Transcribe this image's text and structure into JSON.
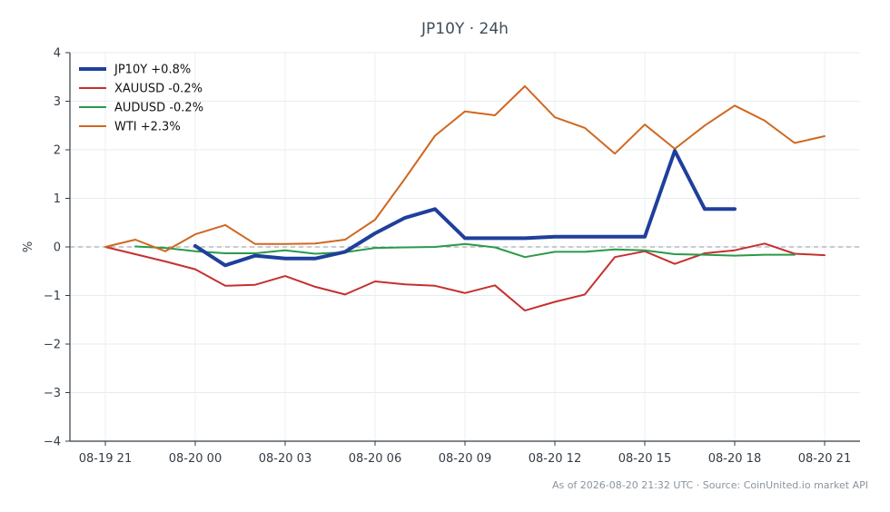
{
  "chart_data": {
    "type": "line",
    "title": "JP10Y · 24h",
    "ylabel": "%",
    "xlabel": "",
    "ylim": [
      -4,
      4
    ],
    "yticks": [
      4,
      3,
      2,
      1,
      0,
      -1,
      -2,
      -3,
      -4
    ],
    "ytick_labels": [
      "4",
      "3",
      "2",
      "1",
      "0",
      "−1",
      "−2",
      "−3",
      "−4"
    ],
    "xlim": [
      0,
      24
    ],
    "xticks": [
      0,
      3,
      6,
      9,
      12,
      15,
      18,
      21,
      24
    ],
    "xtick_labels": [
      "08-19 21",
      "08-20 00",
      "08-20 03",
      "08-20 06",
      "08-20 09",
      "08-20 12",
      "08-20 15",
      "08-20 18",
      "08-20 21"
    ],
    "grid": true,
    "zero_line": true,
    "legend_position": "top-left",
    "series": [
      {
        "name": "JP10Y +0.8%",
        "color": "#1f3f9b",
        "width": 4,
        "x": [
          3,
          4,
          5,
          6,
          7,
          8,
          9,
          10,
          11,
          12,
          13,
          14,
          15,
          16,
          17,
          18,
          19,
          20,
          21
        ],
        "y": [
          0.02,
          -0.38,
          -0.18,
          -0.24,
          -0.24,
          -0.1,
          0.28,
          0.6,
          0.78,
          0.18,
          0.18,
          0.18,
          0.21,
          0.21,
          0.21,
          0.21,
          1.98,
          0.78,
          0.78
        ]
      },
      {
        "name": "XAUUSD -0.2%",
        "color": "#c53030",
        "width": 2,
        "x": [
          0,
          1,
          2,
          3,
          4,
          5,
          6,
          7,
          8,
          9,
          10,
          11,
          12,
          13,
          14,
          15,
          16,
          17,
          18,
          19,
          20,
          21,
          22,
          23,
          24
        ],
        "y": [
          0.0,
          -0.15,
          -0.3,
          -0.46,
          -0.8,
          -0.78,
          -0.6,
          -0.82,
          -0.98,
          -0.71,
          -0.77,
          -0.8,
          -0.95,
          -0.79,
          -1.31,
          -1.13,
          -0.98,
          -0.21,
          -0.09,
          -0.35,
          -0.13,
          -0.07,
          0.07,
          -0.14,
          -0.17
        ]
      },
      {
        "name": "AUDUSD -0.2%",
        "color": "#2a9a4a",
        "width": 2,
        "x": [
          1,
          2,
          3,
          4,
          5,
          6,
          7,
          8,
          9,
          10,
          11,
          12,
          13,
          14,
          15,
          16,
          17,
          18,
          19,
          20,
          21,
          22,
          23
        ],
        "y": [
          0.01,
          -0.02,
          -0.09,
          -0.13,
          -0.13,
          -0.07,
          -0.14,
          -0.11,
          -0.02,
          -0.01,
          0.0,
          0.06,
          -0.01,
          -0.21,
          -0.1,
          -0.1,
          -0.05,
          -0.07,
          -0.15,
          -0.16,
          -0.18,
          -0.16,
          -0.16
        ]
      },
      {
        "name": "WTI +2.3%",
        "color": "#d06820",
        "width": 2,
        "x": [
          0,
          1,
          2,
          3,
          4,
          5,
          6,
          7,
          8,
          9,
          10,
          11,
          12,
          13,
          14,
          15,
          16,
          17,
          18,
          19,
          20,
          21,
          22,
          23,
          24
        ],
        "y": [
          0.0,
          0.15,
          -0.09,
          0.26,
          0.45,
          0.06,
          0.06,
          0.07,
          0.15,
          0.56,
          1.41,
          2.29,
          2.79,
          2.71,
          3.31,
          2.67,
          2.45,
          1.92,
          2.52,
          2.02,
          2.5,
          2.91,
          2.6,
          2.14,
          2.28
        ]
      }
    ]
  },
  "footnote": "As of 2026-08-20 21:32 UTC · Source: CoinUnited.io market API"
}
